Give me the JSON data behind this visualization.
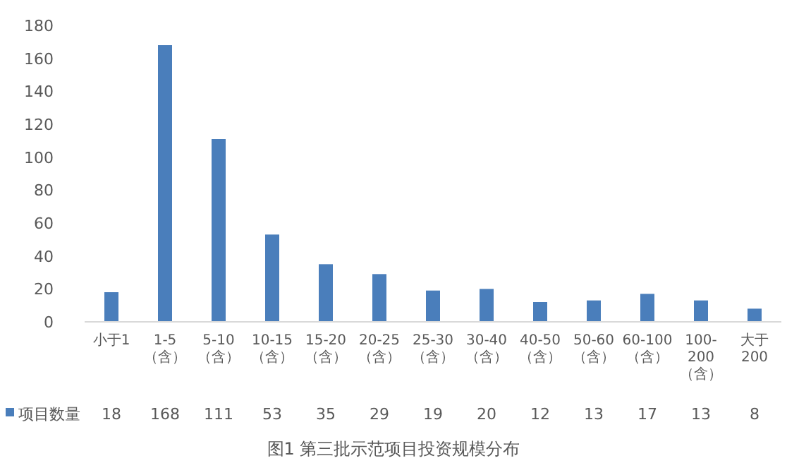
{
  "chart_data": {
    "type": "bar",
    "title": "图1 第三批示范项目投资规模分布",
    "categories": [
      "小于1",
      "1-5（含）",
      "5-10（含）",
      "10-15（含）",
      "15-20（含）",
      "20-25（含）",
      "25-30（含）",
      "30-40（含）",
      "40-50（含）",
      "50-60（含）",
      "60-100（含）",
      "100-200（含）",
      "大于200"
    ],
    "series": [
      {
        "name": "项目数量",
        "color": "#4a7ebb",
        "values": [
          18,
          168,
          111,
          53,
          35,
          29,
          19,
          20,
          12,
          13,
          17,
          13,
          8
        ]
      }
    ],
    "ylim": [
      0,
      180
    ],
    "yticks": [
      0,
      20,
      40,
      60,
      80,
      100,
      120,
      140,
      160,
      180
    ],
    "data_labels": true,
    "legend": "bottom left"
  }
}
